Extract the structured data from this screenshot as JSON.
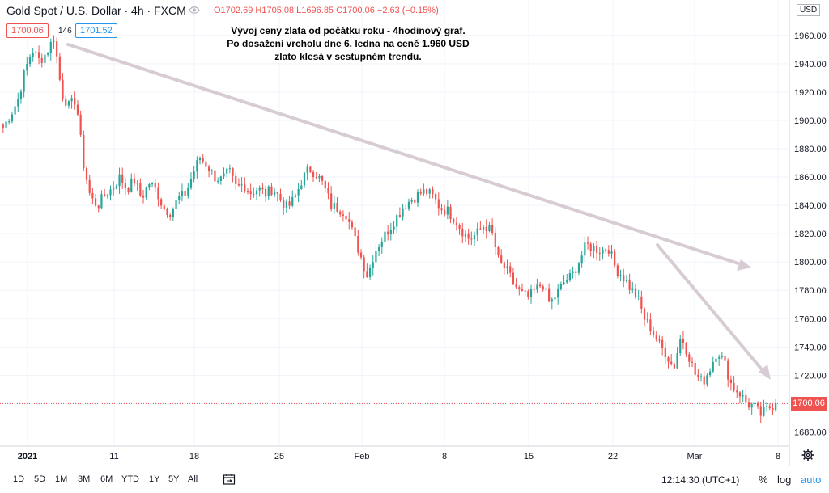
{
  "header": {
    "symbol": "Gold Spot / U.S. Dollar · 4h · FXCM",
    "open": "O1702.69",
    "high": "H1705.08",
    "low": "L1696.85",
    "close": "C1700.06",
    "change": "−2.63 (−0.15%)",
    "bid": "1700.06",
    "spread": "146",
    "ask": "1701.52",
    "note_lines": [
      "Vývoj ceny zlata od počátku roku - 4hodinový graf.",
      "Po dosažení vrcholu dne 6. ledna na ceně 1.960 USD",
      "zlato klesá v sestupném trendu."
    ]
  },
  "price_axis": {
    "currency": "USD",
    "last_price_label": "1700.06"
  },
  "toolbar": {
    "timeframes": [
      "1D",
      "5D",
      "1M",
      "3M",
      "6M",
      "YTD",
      "1Y",
      "5Y",
      "All"
    ],
    "clock": "12:14:30 (UTC+1)",
    "options": [
      "%",
      "log",
      "auto"
    ]
  },
  "colors": {
    "up": "#26a69a",
    "down": "#ef5350",
    "trendline": "#d7ccd4",
    "grid": "#f0f3fa",
    "accent": "#2196f3"
  },
  "chart_data": {
    "type": "candlestick",
    "title": "Gold Spot / U.S. Dollar · 4h · FXCM",
    "ylim": [
      1670,
      1985
    ],
    "y_ticks": [
      1680,
      1700,
      1720,
      1740,
      1760,
      1780,
      1800,
      1820,
      1840,
      1860,
      1880,
      1900,
      1920,
      1940,
      1960
    ],
    "y_tick_labels": [
      "1680.00",
      "1700.00",
      "1720.00",
      "1740.00",
      "1760.00",
      "1780.00",
      "1800.00",
      "1820.00",
      "1840.00",
      "1860.00",
      "1880.00",
      "1900.00",
      "1920.00",
      "1940.00",
      "1960.00"
    ],
    "x_tick_labels": [
      "2021",
      "11",
      "18",
      "25",
      "Feb",
      "8",
      "15",
      "22",
      "Mar",
      "8"
    ],
    "grid": true,
    "last_price": 1700.06,
    "series": [
      {
        "values": [
          1895,
          1904,
          1914,
          1935,
          1950,
          1942,
          1948,
          1959,
          1920,
          1910,
          1915,
          1870,
          1845,
          1840,
          1848,
          1852,
          1860,
          1852,
          1858,
          1845,
          1856,
          1851,
          1838,
          1835,
          1845,
          1848,
          1862,
          1874,
          1868,
          1860,
          1858,
          1864,
          1852,
          1855,
          1849,
          1852,
          1848,
          1852,
          1845,
          1838,
          1845,
          1858,
          1866,
          1862,
          1854,
          1840,
          1838,
          1835,
          1820,
          1805,
          1790,
          1808,
          1816,
          1824,
          1832,
          1840,
          1844,
          1848,
          1850,
          1846,
          1838,
          1836,
          1830,
          1822,
          1816,
          1820,
          1826,
          1822,
          1800,
          1795,
          1785,
          1778,
          1775,
          1780,
          1785,
          1770,
          1778,
          1786,
          1790,
          1800,
          1812,
          1810,
          1808,
          1811,
          1796,
          1790,
          1782,
          1775,
          1760,
          1752,
          1742,
          1735,
          1725,
          1748,
          1735,
          1720,
          1715,
          1725,
          1738,
          1728,
          1712,
          1708,
          1700,
          1698,
          1692,
          1697,
          1700
        ]
      }
    ]
  }
}
